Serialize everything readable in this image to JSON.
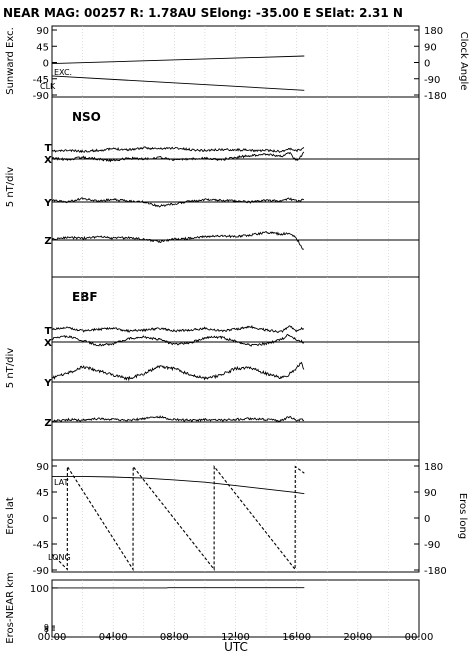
{
  "header": {
    "title": "NEAR MAG: 00257  R: 1.78AU  SElong:  -35.00 E  SElat:    2.31 N"
  },
  "xaxis": {
    "label": "UTC",
    "range_hours": [
      0,
      24
    ],
    "ticks": [
      {
        "h": 0,
        "label": "00:00"
      },
      {
        "h": 4,
        "label": "04:00"
      },
      {
        "h": 8,
        "label": "08:00"
      },
      {
        "h": 12,
        "label": "12:00"
      },
      {
        "h": 16,
        "label": "16:00"
      },
      {
        "h": 20,
        "label": "20:00"
      },
      {
        "h": 24,
        "label": "00:00"
      }
    ]
  },
  "panels": {
    "sunward": {
      "left_label": "Sunward Exc.",
      "right_label": "Clock Angle",
      "left_range": [
        -90,
        90
      ],
      "left_ticks": [
        {
          "v": 90,
          "label": "90"
        },
        {
          "v": 45,
          "label": "45"
        },
        {
          "v": 0,
          "label": "0"
        },
        {
          "v": -45,
          "label": "-45"
        },
        {
          "v": -90,
          "label": "-90"
        }
      ],
      "right_range": [
        -180,
        180
      ],
      "right_ticks": [
        {
          "v": 180,
          "label": "180"
        },
        {
          "v": 90,
          "label": "90"
        },
        {
          "v": 0,
          "label": "0"
        },
        {
          "v": -90,
          "label": "-90"
        },
        {
          "v": -180,
          "label": "-180"
        }
      ],
      "exc_label": "EXC.",
      "clk_label": "CLK"
    },
    "nso": {
      "tag": "NSO",
      "side_label": "5 nT/div",
      "traces": [
        {
          "label": "T",
          "label_offset": -6
        },
        {
          "label": "X",
          "label_offset": 0
        },
        {
          "label": "Y",
          "label_offset": 0
        },
        {
          "label": "Z",
          "label_offset": 0
        }
      ]
    },
    "ebf": {
      "tag": "EBF",
      "side_label": "5 nT/div",
      "traces": [
        {
          "label": "T",
          "label_offset": -6
        },
        {
          "label": "X",
          "label_offset": 0
        },
        {
          "label": "Y",
          "label_offset": 0
        },
        {
          "label": "Z",
          "label_offset": 0
        }
      ]
    },
    "eros": {
      "left_label": "Eros lat",
      "right_label": "Eros long",
      "left_range": [
        -90,
        90
      ],
      "left_ticks": [
        {
          "v": 90,
          "label": "90"
        },
        {
          "v": 45,
          "label": "45"
        },
        {
          "v": 0,
          "label": "0"
        },
        {
          "v": -45,
          "label": "-45"
        },
        {
          "v": -90,
          "label": "-90"
        }
      ],
      "right_range": [
        -180,
        180
      ],
      "right_ticks": [
        {
          "v": 180,
          "label": "180"
        },
        {
          "v": 90,
          "label": "90"
        },
        {
          "v": 0,
          "label": "0"
        },
        {
          "v": -90,
          "label": "-90"
        },
        {
          "v": -180,
          "label": "-180"
        }
      ],
      "lat_label": "LAT",
      "long_label": "LONG"
    },
    "range": {
      "left_label": "Eros-NEAR km",
      "log_ticks": [
        {
          "v": 100,
          "label": "100",
          "major": true
        },
        {
          "v": 9,
          "label": "9",
          "major": false
        },
        {
          "v": 8,
          "label": "8",
          "major": false
        },
        {
          "v": 7,
          "label": "7",
          "major": false
        }
      ]
    }
  },
  "chart_data": [
    {
      "type": "line",
      "name": "sunward",
      "x_unit": "hours UTC",
      "series": [
        {
          "name": "EXC.",
          "axis": "left",
          "x": [
            0,
            16.5
          ],
          "y": [
            -3,
            18
          ]
        },
        {
          "name": "CLK",
          "axis": "left",
          "x": [
            0,
            16.5
          ],
          "y": [
            -37,
            -77
          ]
        }
      ]
    },
    {
      "type": "line",
      "name": "nso",
      "x_unit": "hours UTC",
      "x": [
        0,
        1,
        2,
        3,
        4,
        5,
        6,
        7,
        8,
        9,
        10,
        11,
        12,
        13,
        14,
        15,
        15.5,
        16,
        16.3,
        16.5
      ],
      "series": [
        {
          "name": "T",
          "offset": [
            0.2,
            0.3,
            0.2,
            0.3,
            0.5,
            0.4,
            0.6,
            0.5,
            0.6,
            0.4,
            0.3,
            0.4,
            0.4,
            0.3,
            0.3,
            0.2,
            0.5,
            0.3,
            0.4,
            0.8
          ]
        },
        {
          "name": "X",
          "offset": [
            0.1,
            -0.1,
            0.2,
            0.0,
            -0.2,
            0.1,
            0.0,
            0.2,
            -0.1,
            0.0,
            0.1,
            -0.1,
            0.2,
            0.4,
            0.6,
            0.3,
            0.8,
            -0.2,
            0.3,
            0.9
          ]
        },
        {
          "name": "Y",
          "offset": [
            0.2,
            0.0,
            0.4,
            0.1,
            0.3,
            0.1,
            0.0,
            -0.5,
            -0.2,
            0.1,
            0.3,
            0.2,
            0.1,
            0.0,
            0.2,
            0.1,
            0.4,
            0.1,
            0.2,
            0.3
          ]
        },
        {
          "name": "Z",
          "offset": [
            0.1,
            0.3,
            0.2,
            0.4,
            0.2,
            0.3,
            0.1,
            -0.2,
            0.1,
            0.2,
            0.4,
            0.5,
            0.4,
            0.6,
            0.9,
            0.7,
            0.8,
            0.2,
            -0.8,
            -1.2
          ]
        }
      ]
    },
    {
      "type": "line",
      "name": "ebf",
      "x_unit": "hours UTC",
      "x": [
        0,
        1,
        2,
        3,
        4,
        5,
        6,
        7,
        8,
        9,
        10,
        11,
        12,
        13,
        14,
        15,
        15.5,
        16,
        16.3,
        16.5
      ],
      "series": [
        {
          "name": "T",
          "offset": [
            0.8,
            1.0,
            0.6,
            0.8,
            0.9,
            0.6,
            0.7,
            0.9,
            0.6,
            0.7,
            0.9,
            0.6,
            0.8,
            1.1,
            0.7,
            0.5,
            1.2,
            0.6,
            0.9,
            0.7
          ]
        },
        {
          "name": "X",
          "offset": [
            0.4,
            0.7,
            0.2,
            -0.4,
            -0.2,
            0.4,
            0.6,
            0.3,
            -0.3,
            -0.1,
            0.5,
            0.6,
            0.1,
            -0.4,
            -0.2,
            0.3,
            0.9,
            0.2,
            0.1,
            -0.2
          ]
        },
        {
          "name": "Y",
          "offset": [
            0.5,
            1.0,
            1.8,
            1.4,
            0.8,
            0.4,
            1.0,
            1.8,
            1.6,
            0.9,
            0.4,
            0.8,
            1.6,
            1.7,
            1.0,
            0.5,
            0.9,
            1.7,
            2.3,
            1.2
          ]
        },
        {
          "name": "Z",
          "offset": [
            0.1,
            0.3,
            0.2,
            0.4,
            0.3,
            0.2,
            0.4,
            0.6,
            0.3,
            0.2,
            0.3,
            0.2,
            0.3,
            0.4,
            0.3,
            0.2,
            0.6,
            0.2,
            0.3,
            0.2
          ]
        }
      ]
    },
    {
      "type": "line",
      "name": "eros",
      "x_unit": "hours UTC",
      "series": [
        {
          "name": "LAT",
          "axis": "left",
          "x": [
            0,
            2,
            4,
            6,
            8,
            10,
            12,
            14,
            16,
            16.5
          ],
          "y": [
            72,
            72,
            71,
            69,
            66,
            62,
            56,
            50,
            44,
            42
          ]
        },
        {
          "name": "LONG",
          "axis": "right",
          "style": "dashed",
          "x": [
            0,
            1.0,
            1.01,
            5.3,
            5.31,
            10.6,
            10.61,
            15.9,
            15.91,
            16.5
          ],
          "y": [
            -125,
            -178,
            178,
            -178,
            178,
            -178,
            178,
            -178,
            178,
            155
          ]
        }
      ]
    },
    {
      "type": "line",
      "name": "range",
      "x_unit": "hours UTC",
      "y_scale": "log",
      "series": [
        {
          "name": "Eros-NEAR km",
          "x": [
            0,
            7.5,
            7.6,
            16.5
          ],
          "y": [
            100,
            100,
            101,
            101
          ]
        }
      ]
    }
  ]
}
